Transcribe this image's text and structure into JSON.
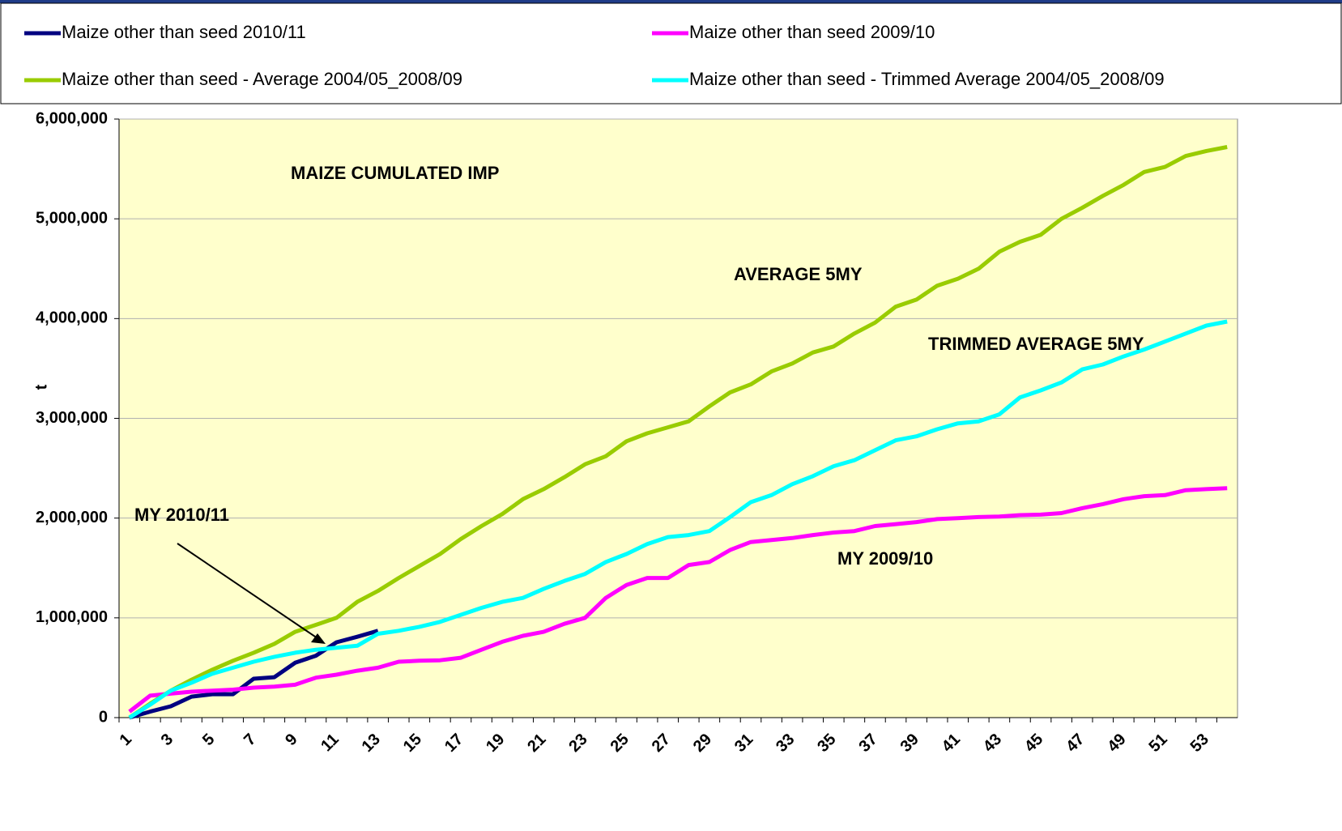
{
  "chart_data": {
    "type": "line",
    "y_label": "t",
    "annotations": [
      "MAIZE CUMULATED IMP",
      "AVERAGE 5MY",
      "TRIMMED AVERAGE 5MY",
      "MY 2010/11",
      "MY 2009/10"
    ],
    "categories": [
      "1",
      null,
      "3",
      null,
      "5",
      null,
      "7",
      null,
      "9",
      null,
      "11",
      null,
      "13",
      null,
      "15",
      null,
      "17",
      null,
      "19",
      null,
      "21",
      null,
      "23",
      null,
      "25",
      null,
      "27",
      null,
      "29",
      null,
      "31",
      null,
      "33",
      null,
      "35",
      null,
      "37",
      null,
      "39",
      null,
      "41",
      null,
      "43",
      null,
      "45",
      null,
      "47",
      null,
      "49",
      null,
      "51",
      null,
      "53",
      null
    ],
    "series": [
      {
        "name": "Maize other than seed 2010/11",
        "color": "#000080",
        "values": [
          0,
          60000,
          114000,
          210000,
          235000,
          235000,
          390000,
          405000,
          550000,
          620000,
          755000,
          810000,
          870000,
          null,
          null,
          null,
          null,
          null,
          null,
          null,
          null,
          null,
          null,
          null,
          null,
          null,
          null,
          null,
          null,
          null,
          null,
          null,
          null,
          null,
          null,
          null,
          null,
          null,
          null,
          null,
          null,
          null,
          null,
          null,
          null,
          null,
          null,
          null,
          null,
          null,
          null,
          null,
          null,
          null
        ]
      },
      {
        "name": "Maize other than seed 2009/10",
        "color": "#ff00ff",
        "values": [
          60000,
          220000,
          240000,
          260000,
          270000,
          280000,
          300000,
          310000,
          330000,
          400000,
          430000,
          470000,
          500000,
          560000,
          570000,
          575000,
          600000,
          680000,
          760000,
          820000,
          860000,
          940000,
          1000000,
          1200000,
          1330000,
          1400000,
          1400000,
          1530000,
          1560000,
          1680000,
          1760000,
          1780000,
          1800000,
          1830000,
          1855000,
          1870000,
          1920000,
          1940000,
          1960000,
          1990000,
          2000000,
          2010000,
          2015000,
          2030000,
          2035000,
          2050000,
          2100000,
          2140000,
          2190000,
          2220000,
          2230000,
          2280000,
          2290000,
          2300000
        ]
      },
      {
        "name": "Maize other than seed - Average 2004/05_2008/09",
        "color": "#99cc00",
        "values": [
          0,
          140000,
          270000,
          380000,
          480000,
          570000,
          650000,
          740000,
          860000,
          930000,
          1000000,
          1160000,
          1270000,
          1400000,
          1520000,
          1640000,
          1790000,
          1920000,
          2040000,
          2190000,
          2290000,
          2410000,
          2540000,
          2620000,
          2770000,
          2850000,
          2910000,
          2970000,
          3120000,
          3260000,
          3340000,
          3470000,
          3550000,
          3660000,
          3720000,
          3850000,
          3960000,
          4120000,
          4190000,
          4330000,
          4400000,
          4500000,
          4670000,
          4770000,
          4840000,
          5000000,
          5110000,
          5230000,
          5340000,
          5470000,
          5520000,
          5630000,
          5680000,
          5720000
        ]
      },
      {
        "name": "Maize other than seed - Trimmed Average 2004/05_2008/09",
        "color": "#00ffff",
        "values": [
          0,
          130000,
          270000,
          350000,
          440000,
          500000,
          560000,
          610000,
          650000,
          680000,
          700000,
          720000,
          840000,
          870000,
          910000,
          960000,
          1030000,
          1100000,
          1160000,
          1200000,
          1290000,
          1370000,
          1440000,
          1560000,
          1640000,
          1740000,
          1810000,
          1830000,
          1870000,
          2010000,
          2160000,
          2230000,
          2340000,
          2420000,
          2520000,
          2580000,
          2680000,
          2780000,
          2820000,
          2890000,
          2950000,
          2970000,
          3040000,
          3210000,
          3280000,
          3360000,
          3490000,
          3540000,
          3620000,
          3690000,
          3770000,
          3850000,
          3930000,
          3970000
        ]
      }
    ],
    "ylim": [
      0,
      6000000
    ],
    "yticks": [
      0,
      {
        "value": 1000000,
        "label": "1,000,000"
      },
      {
        "value": 2000000,
        "label": "2,000,000"
      },
      {
        "value": 3000000,
        "label": "3,000,000"
      },
      {
        "value": 4000000,
        "label": "4,000,000"
      },
      {
        "value": 5000000,
        "label": "5,000,000"
      },
      {
        "value": 6000000,
        "label": "6,000,000"
      }
    ],
    "grid": true
  }
}
